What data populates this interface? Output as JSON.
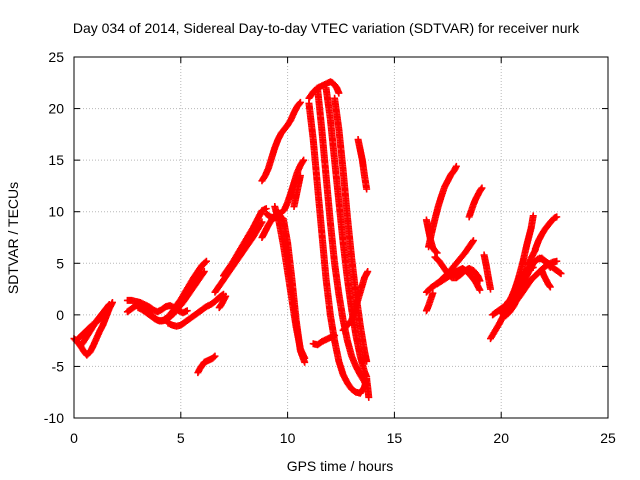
{
  "chart_data": {
    "type": "scatter",
    "title": "Day 034 of 2014, Sidereal Day-to-day VTEC variation (SDTVAR) for receiver nurk",
    "xlabel": "GPS time / hours",
    "ylabel": "SDTVAR / TECUs",
    "xlim": [
      0,
      25
    ],
    "ylim": [
      -10,
      25
    ],
    "x_ticks": [
      0,
      5,
      10,
      15,
      20,
      25
    ],
    "y_ticks": [
      -10,
      -5,
      0,
      5,
      10,
      15,
      20,
      25
    ],
    "x_tick_labels": [
      "0",
      "5",
      "10",
      "15",
      "20",
      "25"
    ],
    "y_tick_labels": [
      "-10",
      "-5",
      "0",
      "5",
      "10",
      "15",
      "20",
      "25"
    ],
    "grid": true,
    "legend": "none",
    "marker": "+",
    "color": "#ff0000",
    "series": [
      {
        "x": [
          0.0,
          0.15,
          0.3,
          0.45,
          0.6,
          0.75,
          0.9,
          1.05,
          1.2,
          1.35,
          1.5,
          1.65,
          1.8
        ],
        "y": [
          -2.3,
          -2.6,
          -3.0,
          -3.5,
          -3.9,
          -3.6,
          -3.0,
          -2.3,
          -1.6,
          -1.0,
          -0.2,
          0.6,
          1.2
        ]
      },
      {
        "x": [
          0.1,
          0.25,
          0.4,
          0.55,
          0.7,
          0.85,
          1.0,
          1.15,
          1.3,
          1.45,
          1.6
        ],
        "y": [
          -2.5,
          -2.2,
          -1.9,
          -1.6,
          -1.3,
          -1.0,
          -0.8,
          -0.5,
          -0.2,
          0.1,
          0.5
        ]
      },
      {
        "x": [
          0.3,
          0.45,
          0.6,
          0.75,
          0.9,
          1.05,
          1.2,
          1.35,
          1.5,
          1.65
        ],
        "y": [
          -3.0,
          -2.6,
          -2.1,
          -1.6,
          -1.1,
          -0.6,
          -0.2,
          0.2,
          0.6,
          1.0
        ]
      },
      {
        "x": [
          2.5,
          2.7,
          2.9,
          3.1,
          3.3,
          3.5,
          3.7,
          3.9,
          4.1,
          4.3,
          4.5,
          4.7,
          4.9,
          5.1,
          5.3
        ],
        "y": [
          1.4,
          1.4,
          1.3,
          1.2,
          1.0,
          0.8,
          0.5,
          0.3,
          0.5,
          0.8,
          0.9,
          0.7,
          0.4,
          0.2,
          0.4
        ]
      },
      {
        "x": [
          2.5,
          2.7,
          2.9,
          3.1,
          3.3,
          3.5,
          3.7,
          3.9,
          4.1,
          4.3,
          4.5,
          4.7,
          4.9,
          5.1,
          5.3,
          5.5,
          5.7,
          5.9,
          6.1
        ],
        "y": [
          0.3,
          0.6,
          0.9,
          0.9,
          0.6,
          0.3,
          -0.2,
          -0.5,
          -0.6,
          -0.5,
          -0.2,
          0.2,
          0.7,
          1.2,
          1.8,
          2.4,
          3.0,
          3.6,
          4.2
        ]
      },
      {
        "x": [
          3.0,
          3.2,
          3.4,
          3.6,
          3.8,
          4.0,
          4.2,
          4.4,
          4.6,
          4.8,
          5.0,
          5.2,
          5.4,
          5.6,
          5.8,
          6.0
        ],
        "y": [
          0.7,
          0.5,
          0.2,
          -0.1,
          -0.4,
          -0.6,
          -0.5,
          -0.2,
          0.3,
          0.9,
          1.5,
          2.2,
          2.9,
          3.6,
          4.2,
          4.8
        ]
      },
      {
        "x": [
          4.4,
          4.6,
          4.8,
          5.0,
          5.2,
          5.4,
          5.6,
          5.8,
          6.0,
          6.2,
          6.4,
          6.6,
          6.8,
          7.0
        ],
        "y": [
          -0.8,
          -1.0,
          -1.1,
          -1.0,
          -0.7,
          -0.4,
          -0.1,
          0.2,
          0.5,
          0.8,
          1.0,
          1.3,
          1.7,
          2.0
        ]
      },
      {
        "x": [
          5.0,
          5.2,
          5.4,
          5.6,
          5.8,
          6.0,
          6.2
        ],
        "y": [
          1.0,
          1.8,
          2.6,
          3.4,
          4.2,
          4.8,
          5.2
        ]
      },
      {
        "x": [
          5.8,
          5.9,
          6.0,
          6.1,
          6.2,
          6.3,
          6.4,
          6.5,
          6.6
        ],
        "y": [
          -5.6,
          -5.2,
          -4.9,
          -4.6,
          -4.5,
          -4.4,
          -4.3,
          -4.2,
          -4.0
        ]
      },
      {
        "x": [
          6.6,
          6.8,
          7.0,
          7.2,
          7.4,
          7.6,
          7.8,
          8.0,
          8.2,
          8.4,
          8.6,
          8.8
        ],
        "y": [
          2.2,
          2.8,
          3.4,
          4.0,
          4.6,
          5.2,
          5.8,
          6.4,
          7.0,
          7.6,
          8.3,
          9.0
        ]
      },
      {
        "x": [
          7.0,
          7.2,
          7.4,
          7.6,
          7.8,
          8.0,
          8.2,
          8.4,
          8.6,
          8.8,
          9.0
        ],
        "y": [
          3.8,
          4.4,
          5.0,
          5.7,
          6.4,
          7.1,
          7.8,
          8.5,
          9.3,
          10.1,
          10.3
        ]
      },
      {
        "x": [
          6.8,
          6.9,
          7.0,
          7.1
        ],
        "y": [
          0.7,
          1.0,
          1.4,
          1.8
        ]
      },
      {
        "x": [
          8.8,
          8.95,
          9.1,
          9.25,
          9.4,
          9.55,
          9.7,
          9.85,
          10.0,
          10.15,
          10.3,
          10.45,
          10.6
        ],
        "y": [
          13.0,
          13.5,
          14.2,
          15.2,
          16.2,
          17.0,
          17.6,
          18.0,
          18.4,
          18.9,
          19.6,
          20.2,
          20.6
        ]
      },
      {
        "x": [
          8.8,
          8.95,
          9.1,
          9.25,
          9.4,
          9.55,
          9.7,
          9.85,
          10.0,
          10.15,
          10.3,
          10.45,
          10.6,
          10.75
        ],
        "y": [
          7.5,
          8.1,
          8.7,
          9.2,
          9.6,
          9.8,
          9.9,
          10.2,
          10.9,
          11.8,
          12.8,
          13.8,
          14.5,
          15.0
        ]
      },
      {
        "x": [
          9.0,
          9.2,
          9.4,
          9.6,
          9.8,
          10.0,
          10.2,
          10.4,
          10.6,
          10.8
        ],
        "y": [
          9.8,
          9.5,
          9.4,
          9.6,
          9.3,
          7.0,
          3.5,
          -0.5,
          -3.5,
          -4.6
        ]
      },
      {
        "x": [
          9.4,
          9.6,
          9.8,
          10.0,
          10.2,
          10.4,
          10.6,
          10.8
        ],
        "y": [
          10.5,
          9.0,
          6.8,
          4.2,
          1.5,
          -1.2,
          -3.3,
          -4.2
        ]
      },
      {
        "x": [
          10.3,
          10.45,
          10.6
        ],
        "y": [
          10.5,
          12.0,
          13.5
        ]
      },
      {
        "x": [
          11.0,
          11.2,
          11.4,
          11.6,
          11.8,
          12.0,
          12.2,
          12.4,
          12.6,
          12.8,
          13.0,
          13.2,
          13.4,
          13.6,
          13.7
        ],
        "y": [
          20.5,
          17.0,
          12.5,
          8.0,
          3.5,
          0.0,
          -2.5,
          -4.5,
          -5.8,
          -6.6,
          -7.2,
          -7.5,
          -7.6,
          -7.0,
          -6.2
        ]
      },
      {
        "x": [
          11.0,
          11.2,
          11.4,
          11.6,
          11.8,
          12.0,
          12.1,
          12.2,
          12.3,
          12.4
        ],
        "y": [
          21.0,
          21.6,
          22.0,
          22.2,
          22.4,
          22.6,
          22.5,
          22.3,
          22.0,
          21.5
        ]
      },
      {
        "x": [
          11.4,
          11.6,
          11.8,
          12.0,
          12.2,
          12.4,
          12.6,
          12.8,
          13.0,
          13.2,
          13.4,
          13.6,
          13.7
        ],
        "y": [
          22.0,
          18.0,
          13.5,
          9.0,
          5.0,
          2.0,
          -0.5,
          -2.5,
          -4.0,
          -5.0,
          -5.8,
          -6.5,
          -6.8
        ]
      },
      {
        "x": [
          11.8,
          12.0,
          12.2,
          12.4,
          12.6,
          12.8,
          13.0,
          13.2,
          13.4,
          13.6,
          13.7
        ],
        "y": [
          22.0,
          19.0,
          15.0,
          11.0,
          7.0,
          3.5,
          0.5,
          -2.0,
          -4.0,
          -5.5,
          -6.0
        ]
      },
      {
        "x": [
          12.2,
          12.4,
          12.6,
          12.8,
          13.0,
          13.2,
          13.4,
          13.6,
          13.7
        ],
        "y": [
          21.0,
          18.0,
          14.0,
          9.5,
          5.5,
          2.0,
          -1.0,
          -3.5,
          -4.5
        ]
      },
      {
        "x": [
          12.6,
          12.8,
          13.0,
          13.2,
          13.4,
          13.6,
          13.75
        ],
        "y": [
          -1.5,
          -1.0,
          -0.5,
          0.8,
          2.2,
          3.6,
          4.2
        ]
      },
      {
        "x": [
          11.2,
          11.4,
          11.6,
          11.8,
          12.0,
          12.2
        ],
        "y": [
          -2.8,
          -2.9,
          -2.6,
          -2.4,
          -2.2,
          -2.0
        ]
      },
      {
        "x": [
          13.3,
          13.4,
          13.5,
          13.6,
          13.7
        ],
        "y": [
          17.0,
          16.0,
          15.0,
          13.5,
          12.2
        ]
      },
      {
        "x": [
          13.7,
          13.75,
          13.8
        ],
        "y": [
          -6.2,
          -7.0,
          -8.0
        ]
      },
      {
        "x": [
          16.5,
          16.6,
          16.7,
          16.8,
          16.9,
          17.0
        ],
        "y": [
          9.2,
          8.2,
          7.2,
          6.5,
          6.2,
          6.0
        ]
      },
      {
        "x": [
          16.6,
          16.75,
          16.9,
          17.05,
          17.2,
          17.35,
          17.5,
          17.65,
          17.8,
          17.9
        ],
        "y": [
          6.6,
          8.0,
          9.3,
          10.5,
          11.5,
          12.4,
          13.0,
          13.6,
          14.0,
          14.4
        ]
      },
      {
        "x": [
          16.5,
          16.7,
          16.9,
          17.1,
          17.3,
          17.5,
          17.7,
          17.9,
          18.1,
          18.3,
          18.5,
          18.7
        ],
        "y": [
          2.2,
          2.6,
          2.9,
          3.2,
          3.6,
          4.0,
          4.5,
          5.0,
          5.5,
          6.0,
          6.6,
          7.2
        ]
      },
      {
        "x": [
          16.9,
          17.1,
          17.3,
          17.5,
          17.7,
          17.9,
          18.1,
          18.3,
          18.5,
          18.7,
          18.9,
          19.0
        ],
        "y": [
          5.6,
          5.2,
          4.6,
          4.0,
          3.6,
          3.6,
          3.9,
          4.3,
          4.5,
          4.3,
          3.8,
          3.3
        ]
      },
      {
        "x": [
          17.0,
          17.3,
          17.6,
          17.9,
          18.2,
          18.5,
          18.8,
          19.0
        ],
        "y": [
          3.0,
          3.4,
          3.8,
          4.2,
          4.5,
          4.0,
          3.2,
          2.4
        ]
      },
      {
        "x": [
          16.5,
          16.6,
          16.7,
          16.8
        ],
        "y": [
          0.4,
          0.9,
          1.5,
          2.1
        ]
      },
      {
        "x": [
          18.5,
          18.6,
          18.7,
          18.8,
          18.9,
          19.0,
          19.1
        ],
        "y": [
          9.5,
          10.1,
          10.7,
          11.2,
          11.6,
          12.0,
          12.3
        ]
      },
      {
        "x": [
          19.2,
          19.3,
          19.4,
          19.5
        ],
        "y": [
          5.8,
          4.8,
          3.6,
          2.5
        ]
      },
      {
        "x": [
          19.5,
          19.7,
          19.9,
          20.1,
          20.3,
          20.5,
          20.7,
          20.9,
          21.1,
          21.3,
          21.5
        ],
        "y": [
          -2.3,
          -1.6,
          -0.9,
          -0.1,
          0.8,
          1.8,
          2.8,
          3.6,
          4.2,
          4.4,
          4.6
        ]
      },
      {
        "x": [
          19.6,
          19.8,
          20.0,
          20.2,
          20.4,
          20.6,
          20.8,
          21.0,
          21.2,
          21.4,
          21.5
        ],
        "y": [
          0.0,
          0.3,
          0.6,
          0.9,
          1.4,
          2.2,
          3.5,
          5.0,
          6.8,
          8.4,
          9.6
        ]
      },
      {
        "x": [
          20.0,
          20.2,
          20.4,
          20.6,
          20.8,
          21.0,
          21.2,
          21.4,
          21.6
        ],
        "y": [
          0.2,
          -0.1,
          0.3,
          0.9,
          1.8,
          3.0,
          4.3,
          5.5,
          6.3
        ]
      },
      {
        "x": [
          20.3,
          20.5,
          20.7,
          20.9,
          21.1,
          21.3,
          21.5,
          21.7,
          21.9,
          22.1,
          22.3
        ],
        "y": [
          1.2,
          1.6,
          2.1,
          2.7,
          3.4,
          4.2,
          5.0,
          5.4,
          5.5,
          5.1,
          4.6
        ]
      },
      {
        "x": [
          20.0,
          20.2,
          20.4,
          20.6,
          20.8,
          21.0,
          21.2,
          21.4,
          21.6,
          21.8,
          22.0,
          22.2,
          22.4,
          22.6
        ],
        "y": [
          0.2,
          0.4,
          0.7,
          1.1,
          1.6,
          2.2,
          2.8,
          3.4,
          3.8,
          4.2,
          4.6,
          4.9,
          5.1,
          5.2
        ]
      },
      {
        "x": [
          21.6,
          21.75,
          21.9,
          22.05,
          22.2,
          22.35,
          22.5,
          22.6
        ],
        "y": [
          6.4,
          7.2,
          7.8,
          8.3,
          8.7,
          9.1,
          9.4,
          9.5
        ]
      },
      {
        "x": [
          21.8,
          22.0,
          22.2,
          22.4,
          22.6,
          22.8
        ],
        "y": [
          5.5,
          5.3,
          5.0,
          4.6,
          4.3,
          4.0
        ]
      },
      {
        "x": [
          21.9,
          22.0,
          22.1,
          22.2,
          22.3
        ],
        "y": [
          4.3,
          3.8,
          3.4,
          3.0,
          2.7
        ]
      }
    ]
  }
}
